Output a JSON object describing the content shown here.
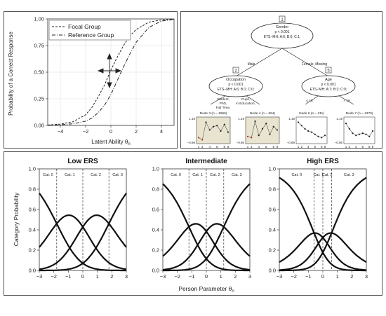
{
  "chart_data": [
    {
      "type": "line",
      "xlabel": "Latent Ability θ",
      "xlabel_sub": "n",
      "ylabel": "Probability of a Correct Response",
      "xticks": [
        "−4",
        "−2",
        "0",
        "2",
        "4"
      ],
      "yticks": [
        "0.00",
        "0.25",
        "0.50",
        "0.75",
        "1.00"
      ],
      "xlim": [
        -5,
        5
      ],
      "ylim": [
        0,
        1
      ],
      "legend_position": "top-left",
      "series": [
        {
          "name": "Focal Group",
          "style": "dashed",
          "values": [
            [
              -5,
              0.004
            ],
            [
              -4,
              0.012
            ],
            [
              -3,
              0.035
            ],
            [
              -2,
              0.1
            ],
            [
              -1.5,
              0.17
            ],
            [
              -1,
              0.27
            ],
            [
              -0.5,
              0.38
            ],
            [
              0,
              0.52
            ],
            [
              0.5,
              0.64
            ],
            [
              1,
              0.75
            ],
            [
              1.5,
              0.84
            ],
            [
              2,
              0.9
            ],
            [
              3,
              0.97
            ],
            [
              4,
              0.99
            ],
            [
              5,
              0.997
            ]
          ]
        },
        {
          "name": "Reference Group",
          "style": "dash-dot",
          "values": [
            [
              -5,
              0.002
            ],
            [
              -4,
              0.006
            ],
            [
              -3,
              0.015
            ],
            [
              -2,
              0.04
            ],
            [
              -1.5,
              0.07
            ],
            [
              -1,
              0.12
            ],
            [
              -0.5,
              0.19
            ],
            [
              0,
              0.29
            ],
            [
              0.5,
              0.42
            ],
            [
              1,
              0.55
            ],
            [
              1.5,
              0.67
            ],
            [
              2,
              0.78
            ],
            [
              3,
              0.92
            ],
            [
              4,
              0.98
            ],
            [
              5,
              0.995
            ]
          ]
        }
      ]
    },
    {
      "type": "diagram",
      "nodes": [
        {
          "id": "1",
          "variable": "Gender",
          "p": "p < 0.001",
          "stat": "ETS−MH: A:6; B:0; C:1;"
        },
        {
          "id": "2",
          "variable": "Occupation",
          "p": "p < 0.001",
          "stat": "ETS−MH: A:6; B:1; C:0;"
        },
        {
          "id": "5",
          "variable": "Age",
          "p": "p < 0.001",
          "stat": "ETS−MH: A:7; B:2; C:0;"
        }
      ],
      "edge_labels": {
        "left": "Male",
        "right": "Female, Missing",
        "occ_left": [
          "Student,",
          "PhD,",
          "Full Time,"
        ],
        "occ_right": [
          "Pupil,",
          "in Education,"
        ],
        "age_left": "≤ 18",
        "age_right": "> 18"
      },
      "leaves": [
        {
          "title": "Node 3 (n = 1966)",
          "shaded": true,
          "ytop": "1.19",
          "ybottom": "−0.86",
          "values": [
            -0.5,
            -0.7,
            0.9,
            0.2,
            0.5,
            0.6,
            0.1,
            0.7,
            0.0
          ]
        },
        {
          "title": "Node 4 (n = 664)",
          "shaded": true,
          "ytop": "1.19",
          "ybottom": "−0.86",
          "values": [
            -0.4,
            -0.5,
            1.0,
            -0.3,
            0.3,
            0.8,
            -0.2,
            0.5,
            0.2
          ]
        },
        {
          "title": "Node 6 (n = 311)",
          "shaded": false,
          "ytop": "1.19",
          "ybottom": "−0.86",
          "values": [
            0.9,
            0.6,
            0.3,
            0.1,
            0.0,
            -0.2,
            -0.4,
            -0.5,
            -0.3
          ]
        },
        {
          "title": "Node 7 (n = 1379)",
          "shaded": false,
          "ytop": "1.19",
          "ybottom": "−0.86",
          "values": [
            0.8,
            0.3,
            -0.1,
            -0.3,
            -0.2,
            -0.1,
            -0.2,
            -0.4,
            0.1
          ]
        }
      ],
      "leaf_ticks": [
        "1",
        "2",
        "4",
        "6",
        "8",
        "9"
      ]
    },
    {
      "type": "line",
      "xlabel": "Person Parameter θ",
      "xlabel_sub": "n",
      "ylabel": "Category Probability",
      "xlim": [
        -3,
        3
      ],
      "ylim": [
        0,
        1
      ],
      "xticks": [
        "−3",
        "−2",
        "−1",
        "0",
        "1",
        "2",
        "3"
      ],
      "yticks": [
        "0.0",
        "0.2",
        "0.4",
        "0.6",
        "0.8",
        "1.0"
      ],
      "panels": [
        {
          "title": "Low ERS",
          "thresholds": [
            -1.8,
            0,
            1.8
          ],
          "categories": [
            "Cat. 0",
            "Cat. 1",
            "Cat. 2",
            "Cat. 3"
          ]
        },
        {
          "title": "Intermediate",
          "thresholds": [
            -1.2,
            0,
            1.2
          ],
          "categories": [
            "Cat. 0",
            "Cat. 1",
            "Cat. 2",
            "Cat. 3"
          ]
        },
        {
          "title": "High ERS",
          "thresholds": [
            -0.6,
            0,
            0.6
          ],
          "categories": [
            "Cat. 0",
            "Cat. 1",
            "Cat. 2",
            "Cat. 3"
          ]
        }
      ]
    }
  ]
}
